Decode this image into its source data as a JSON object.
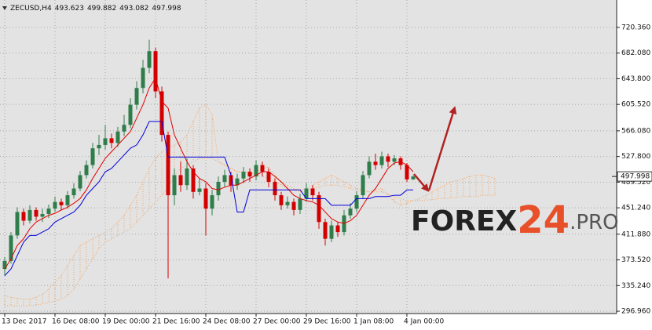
{
  "chart_data": {
    "type": "candlestick",
    "header": [
      "ZECUSD,H4",
      "493.623",
      "499.882",
      "493.082",
      "497.998"
    ],
    "colors": {
      "up": "#2f7d4a",
      "down": "#d40000",
      "wick": "#333333"
    },
    "grid": true,
    "xlim": [
      -0.75,
      97.375
    ],
    "ylim": [
      293.5,
      755.4
    ],
    "yticks": [
      {
        "value": 720.36,
        "label": "720.360"
      },
      {
        "value": 682.08,
        "label": "682.080"
      },
      {
        "value": 643.8,
        "label": "643.800"
      },
      {
        "value": 605.52,
        "label": "605.520"
      },
      {
        "value": 566.08,
        "label": "566.080"
      },
      {
        "value": 527.8,
        "label": "527.800"
      },
      {
        "value": 489.52,
        "label": "489.520"
      },
      {
        "value": 451.24,
        "label": "451.240"
      },
      {
        "value": 411.88,
        "label": "411.880"
      },
      {
        "value": 373.52,
        "label": "373.520"
      },
      {
        "value": 335.24,
        "label": "335.240"
      },
      {
        "value": 296.96,
        "label": "296.960"
      }
    ],
    "xticks": [
      {
        "value": 0,
        "label": "13 Dec 2017"
      },
      {
        "value": 8,
        "label": "16 Dec 08:00"
      },
      {
        "value": 16,
        "label": "19 Dec 00:00"
      },
      {
        "value": 24,
        "label": "21 Dec 16:00"
      },
      {
        "value": 32,
        "label": "24 Dec 08:00"
      },
      {
        "value": 40,
        "label": "27 Dec 00:00"
      },
      {
        "value": 48,
        "label": "29 Dec 16:00"
      },
      {
        "value": 56,
        "label": "1 Jan 08:00"
      },
      {
        "value": 64,
        "label": "4 Jan 00:00"
      }
    ],
    "ohlc": {
      "open": [
        360,
        372,
        410,
        445,
        432,
        448,
        438,
        442,
        450,
        460,
        455,
        470,
        480,
        500,
        515,
        540,
        545,
        555,
        548,
        565,
        575,
        605,
        630,
        660,
        685,
        625,
        560,
        470,
        500,
        485,
        510,
        475,
        480,
        450,
        470,
        490,
        500,
        485,
        495,
        505,
        498,
        515,
        505,
        490,
        470,
        455,
        460,
        448,
        465,
        480,
        470,
        430,
        405,
        425,
        415,
        440,
        450,
        470,
        500,
        520,
        515,
        528,
        520,
        525,
        515,
        493.623
      ],
      "high": [
        378,
        415,
        452,
        450,
        455,
        452,
        450,
        456,
        468,
        465,
        476,
        488,
        506,
        522,
        548,
        560,
        575,
        562,
        572,
        590,
        615,
        640,
        672,
        702,
        690,
        632,
        565,
        510,
        520,
        525,
        515,
        495,
        488,
        478,
        498,
        508,
        505,
        502,
        512,
        510,
        522,
        520,
        510,
        495,
        475,
        468,
        465,
        472,
        488,
        485,
        475,
        435,
        432,
        430,
        448,
        458,
        476,
        506,
        528,
        532,
        535,
        532,
        530,
        528,
        518,
        499.882
      ],
      "low": [
        350,
        368,
        405,
        425,
        428,
        432,
        430,
        436,
        445,
        448,
        450,
        465,
        476,
        495,
        510,
        530,
        538,
        540,
        542,
        558,
        570,
        598,
        622,
        652,
        615,
        550,
        346,
        455,
        475,
        478,
        465,
        470,
        410,
        440,
        462,
        482,
        475,
        478,
        488,
        490,
        492,
        498,
        482,
        462,
        448,
        450,
        440,
        442,
        460,
        462,
        420,
        395,
        400,
        408,
        410,
        435,
        445,
        465,
        495,
        508,
        510,
        512,
        515,
        508,
        490,
        493.082
      ],
      "close": [
        372,
        410,
        445,
        432,
        448,
        438,
        442,
        450,
        460,
        455,
        470,
        480,
        500,
        515,
        540,
        545,
        555,
        548,
        565,
        575,
        605,
        630,
        660,
        685,
        625,
        560,
        470,
        500,
        485,
        510,
        475,
        480,
        450,
        470,
        490,
        500,
        485,
        495,
        505,
        498,
        515,
        505,
        490,
        470,
        455,
        460,
        448,
        465,
        480,
        470,
        430,
        405,
        425,
        415,
        440,
        450,
        470,
        500,
        520,
        515,
        528,
        520,
        525,
        515,
        493.623,
        497.998
      ]
    },
    "lines": [
      {
        "color": "#e00000",
        "values": [
          360,
          375,
          395,
          405,
          420,
          430,
          435,
          440,
          443,
          448,
          452,
          458,
          465,
          478,
          495,
          510,
          525,
          535,
          545,
          555,
          565,
          585,
          605,
          630,
          645,
          610,
          600,
          560,
          540,
          520,
          505,
          495,
          490,
          480,
          478,
          482,
          485,
          485,
          490,
          495,
          500,
          505,
          505,
          498,
          490,
          480,
          470,
          465,
          462,
          460,
          455,
          445,
          435,
          430,
          428,
          432,
          440,
          455,
          470,
          480,
          495,
          510,
          518,
          520,
          515,
          505
        ]
      },
      {
        "color": "#0000dd",
        "values": [
          350,
          360,
          380,
          400,
          410,
          410,
          415,
          420,
          430,
          435,
          440,
          445,
          455,
          470,
          480,
          490,
          505,
          510,
          520,
          530,
          540,
          545,
          560,
          580,
          580,
          580,
          527,
          527,
          527,
          527,
          527,
          527,
          527,
          527,
          527,
          527,
          500,
          445,
          445,
          478,
          478,
          478,
          478,
          478,
          478,
          478,
          478,
          478,
          465,
          465,
          465,
          465,
          455,
          455,
          455,
          455,
          465,
          465,
          465,
          468,
          468,
          468,
          470,
          470,
          478,
          478
        ]
      }
    ],
    "cloud": {
      "color": "#f4a460",
      "span_a": [
        320,
        318,
        316,
        315,
        315,
        318,
        322,
        330,
        340,
        350,
        365,
        380,
        395,
        400,
        405,
        410,
        415,
        420,
        430,
        440,
        455,
        470,
        490,
        510,
        525,
        535,
        540,
        545,
        550,
        560,
        580,
        600,
        605,
        590,
        520,
        515,
        510,
        505,
        505,
        500,
        505,
        510,
        512,
        500,
        490,
        485,
        480,
        478,
        480,
        485,
        490,
        495,
        500,
        495,
        490,
        485,
        480,
        478,
        475,
        478,
        480,
        470,
        460,
        455,
        458,
        462,
        465,
        470,
        475,
        480,
        485,
        490,
        492,
        495,
        498,
        500,
        500,
        498,
        495
      ],
      "span_b": [
        305,
        305,
        305,
        305,
        305,
        306,
        308,
        310,
        312,
        315,
        320,
        330,
        345,
        360,
        375,
        390,
        400,
        405,
        410,
        415,
        420,
        430,
        440,
        450,
        460,
        470,
        480,
        500,
        510,
        515,
        520,
        525,
        525,
        525,
        520,
        515,
        510,
        505,
        505,
        505,
        500,
        498,
        495,
        490,
        485,
        480,
        478,
        475,
        478,
        480,
        482,
        485,
        485,
        485,
        483,
        480,
        478,
        476,
        475,
        475,
        475,
        472,
        468,
        465,
        462,
        462,
        462,
        463,
        463,
        465,
        465,
        466,
        467,
        468,
        468,
        468,
        470,
        470,
        470
      ]
    },
    "last_price": 497.998,
    "logo": [
      "FOREX",
      "24",
      ".PRO"
    ]
  }
}
